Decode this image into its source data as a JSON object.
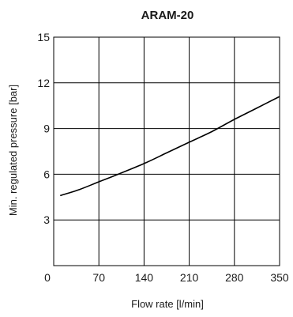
{
  "chart_data": {
    "type": "line",
    "title": "ARAM-20",
    "xlabel": "Flow rate [l/min]",
    "ylabel": "Min. regulated pressure [bar]",
    "xlim": [
      0,
      350
    ],
    "ylim": [
      0,
      15
    ],
    "x_ticks": [
      "0",
      "70",
      "140",
      "210",
      "280",
      "350"
    ],
    "y_ticks": [
      "3",
      "6",
      "9",
      "12",
      "15"
    ],
    "grid": true,
    "series": [
      {
        "x": [
          10,
          40,
          70,
          100,
          140,
          175,
          210,
          245,
          280,
          315,
          350
        ],
        "values": [
          4.6,
          5.0,
          5.5,
          6.0,
          6.7,
          7.4,
          8.1,
          8.8,
          9.6,
          10.35,
          11.1
        ]
      }
    ]
  }
}
